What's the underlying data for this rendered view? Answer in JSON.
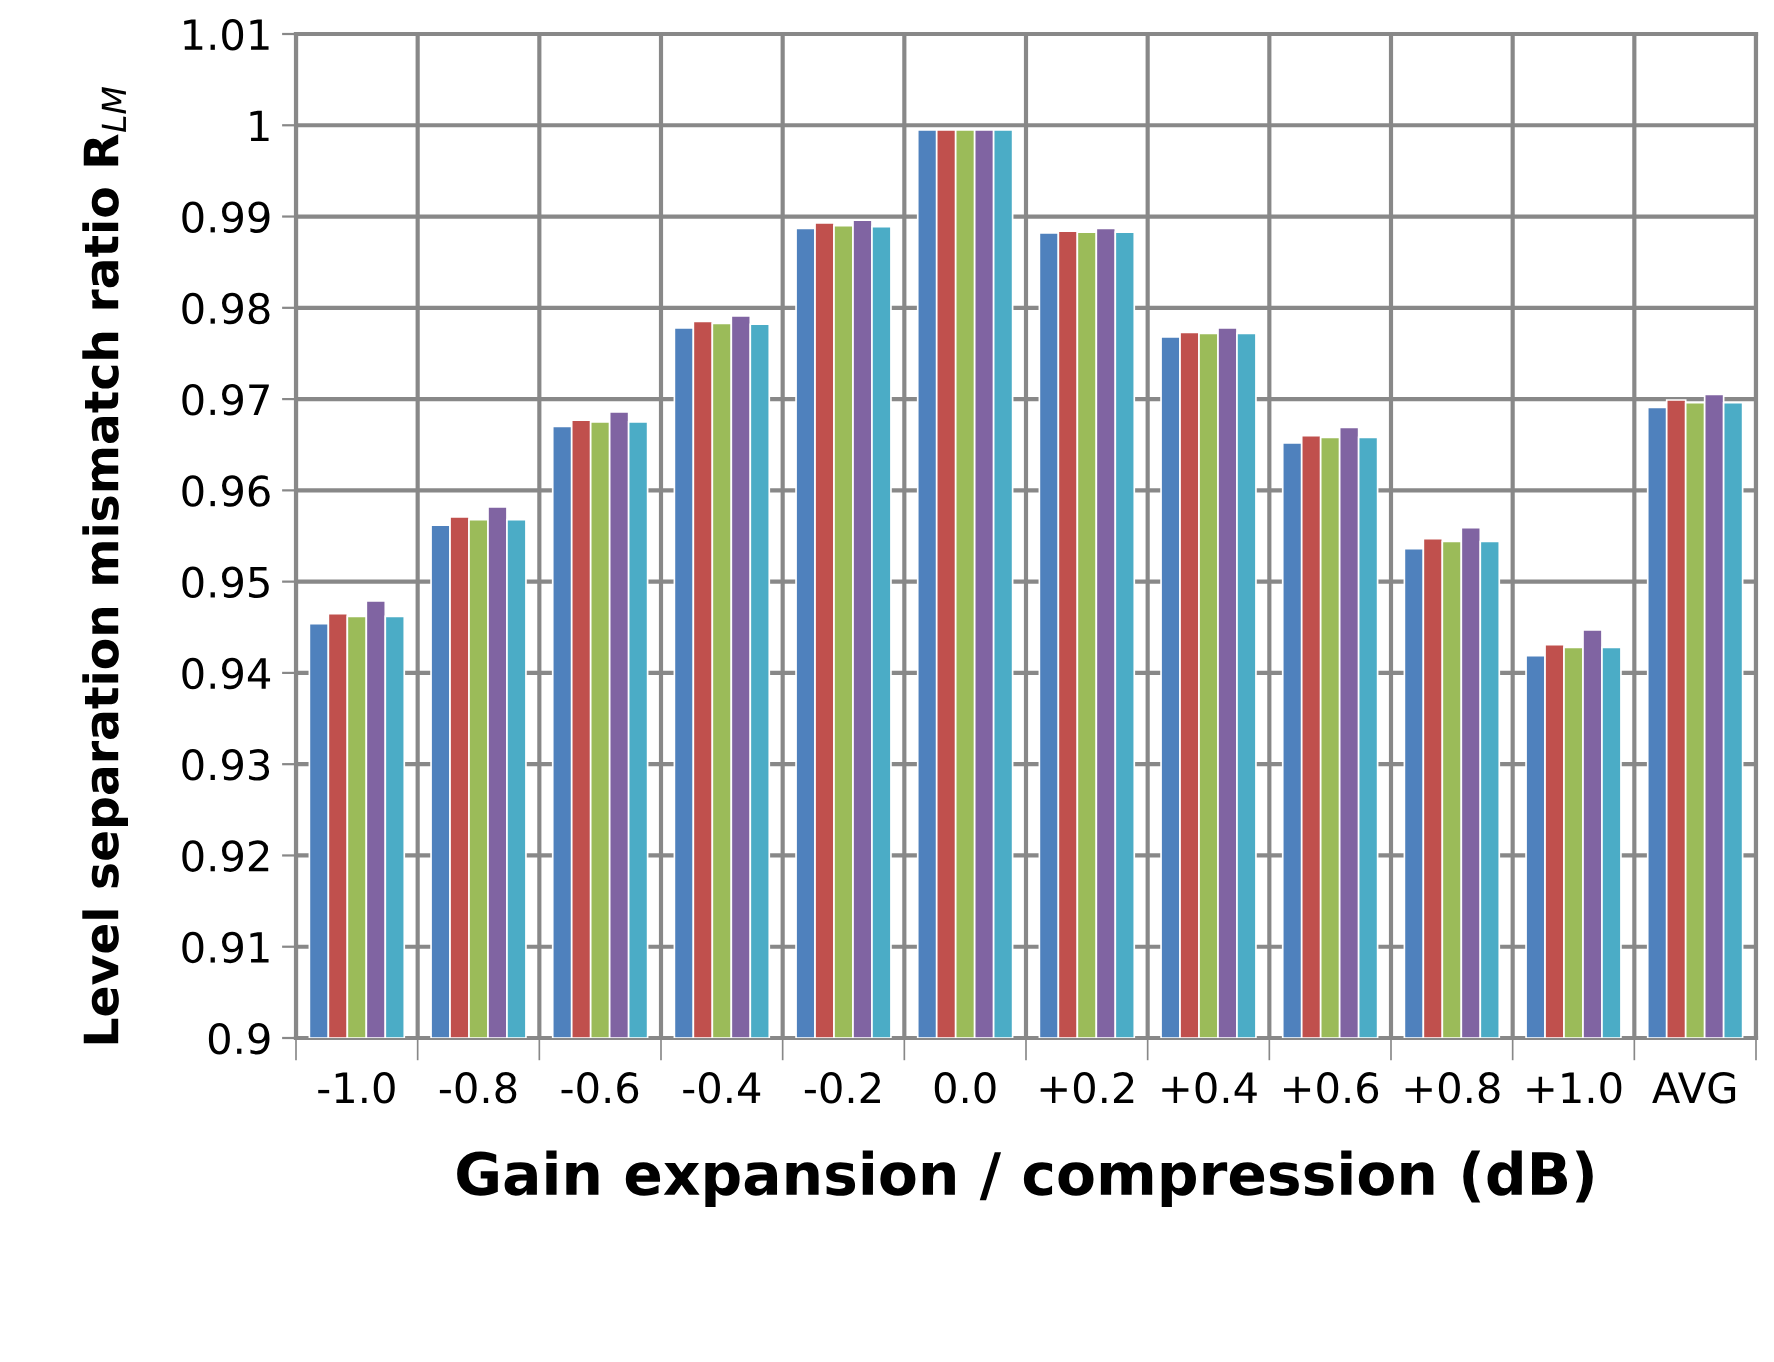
{
  "chart_data": {
    "type": "bar",
    "xlabel": "Gain expansion / compression (dB)",
    "ylabel": "Level separation mismatch ratio R$_{LM}$",
    "categories": [
      "-1.0",
      "-0.8",
      "-0.6",
      "-0.4",
      "-0.2",
      "0.0",
      "+0.2",
      "+0.4",
      "+0.6",
      "+0.8",
      "+1.0",
      "AVG"
    ],
    "series": [
      {
        "color": "#4f81bd",
        "values": [
          0.9454,
          0.9562,
          0.967,
          0.9778,
          0.9887,
          0.9995,
          0.9882,
          0.9768,
          0.9652,
          0.9536,
          0.9419,
          0.9691
        ]
      },
      {
        "color": "#c0504d",
        "values": [
          0.9465,
          0.9571,
          0.9677,
          0.9785,
          0.9893,
          0.9995,
          0.9884,
          0.9773,
          0.966,
          0.9547,
          0.9431,
          0.9699
        ]
      },
      {
        "color": "#9bbb59",
        "values": [
          0.9462,
          0.9568,
          0.9675,
          0.9783,
          0.989,
          0.9995,
          0.9883,
          0.9772,
          0.9658,
          0.9544,
          0.9428,
          0.9696
        ]
      },
      {
        "color": "#8064a2",
        "values": [
          0.9479,
          0.9582,
          0.9686,
          0.9791,
          0.9896,
          0.9995,
          0.9887,
          0.9778,
          0.9669,
          0.9559,
          0.9447,
          0.9705
        ]
      },
      {
        "color": "#4bacc6",
        "values": [
          0.9462,
          0.9568,
          0.9675,
          0.9782,
          0.9889,
          0.9995,
          0.9883,
          0.9772,
          0.9658,
          0.9544,
          0.9428,
          0.9696
        ]
      }
    ],
    "ylim": [
      0.9,
      1.01
    ],
    "yticks": [
      0.9,
      0.91,
      0.92,
      0.93,
      0.94,
      0.95,
      0.96,
      0.97,
      0.98,
      0.99,
      1,
      1.01
    ],
    "grid": true
  }
}
